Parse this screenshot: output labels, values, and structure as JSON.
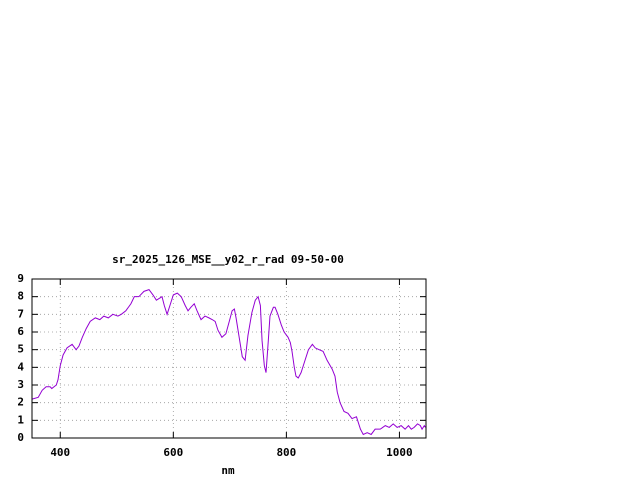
{
  "chart_data": {
    "type": "line",
    "title": "sr_2025_126_MSE__y02_r_rad 09-50-00",
    "x_label": "nm",
    "x": [
      350,
      361,
      368,
      375,
      382,
      385,
      393,
      396,
      400,
      405,
      412,
      421,
      428,
      433,
      439,
      446,
      453,
      462,
      470,
      477,
      485,
      493,
      502,
      508,
      516,
      525,
      531,
      539,
      548,
      557,
      564,
      570,
      575,
      580,
      584,
      589,
      594,
      600,
      607,
      614,
      621,
      626,
      631,
      637,
      642,
      649,
      656,
      663,
      669,
      674,
      679,
      686,
      693,
      699,
      704,
      708,
      711,
      716,
      722,
      727,
      732,
      739,
      745,
      750,
      754,
      757,
      761,
      764,
      768,
      771,
      777,
      780,
      785,
      791,
      796,
      803,
      807,
      810,
      814,
      817,
      821,
      826,
      833,
      839,
      846,
      851,
      858,
      865,
      872,
      881,
      886,
      890,
      895,
      902,
      909,
      916,
      924,
      931,
      936,
      943,
      950,
      957,
      966,
      975,
      982,
      989,
      996,
      1003,
      1010,
      1016,
      1021,
      1026,
      1032,
      1037,
      1040,
      1044,
      1046
    ],
    "values": [
      2.2,
      2.3,
      2.7,
      2.9,
      2.9,
      2.8,
      3.0,
      3.3,
      4.1,
      4.7,
      5.1,
      5.3,
      5.0,
      5.2,
      5.7,
      6.2,
      6.6,
      6.8,
      6.7,
      6.9,
      6.8,
      7.0,
      6.9,
      7.0,
      7.2,
      7.6,
      8.0,
      8.0,
      8.3,
      8.4,
      8.1,
      7.8,
      7.9,
      8.0,
      7.5,
      7.0,
      7.5,
      8.1,
      8.2,
      8.0,
      7.5,
      7.2,
      7.4,
      7.6,
      7.2,
      6.7,
      6.9,
      6.8,
      6.7,
      6.6,
      6.1,
      5.7,
      5.9,
      6.6,
      7.2,
      7.3,
      6.8,
      5.8,
      4.6,
      4.4,
      5.8,
      7.1,
      7.8,
      8.0,
      7.5,
      5.5,
      4.1,
      3.7,
      5.5,
      6.9,
      7.4,
      7.4,
      7.0,
      6.4,
      6.0,
      5.7,
      5.4,
      4.9,
      4.0,
      3.5,
      3.4,
      3.7,
      4.4,
      5.0,
      5.3,
      5.1,
      5.0,
      4.9,
      4.4,
      3.9,
      3.5,
      2.6,
      2.0,
      1.5,
      1.4,
      1.1,
      1.2,
      0.5,
      0.2,
      0.3,
      0.2,
      0.5,
      0.5,
      0.7,
      0.6,
      0.8,
      0.6,
      0.7,
      0.5,
      0.7,
      0.5,
      0.6,
      0.8,
      0.7,
      0.5,
      0.7,
      0.6
    ],
    "color": "#9400d3",
    "xlim": [
      350,
      1047
    ],
    "ylim": [
      0,
      9
    ],
    "xticks": [
      400,
      600,
      800,
      1000
    ],
    "yticks": [
      0,
      1,
      2,
      3,
      4,
      5,
      6,
      7,
      8,
      9
    ],
    "grid": true
  }
}
